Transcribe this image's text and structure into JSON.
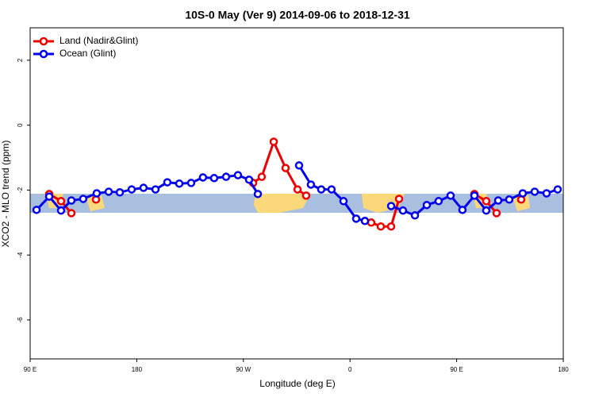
{
  "chart_data": {
    "type": "line",
    "title": "10S-0 May (Ver 9)   2014-09-06 to 2018-12-31",
    "xlabel": "Longitude (deg E)",
    "ylabel": "XCO2 - MLO trend (ppm)",
    "xlim": [
      90,
      540
    ],
    "xticks": [
      {
        "value": 90,
        "label": "90 E"
      },
      {
        "value": 180,
        "label": "180"
      },
      {
        "value": 270,
        "label": "90 W"
      },
      {
        "value": 360,
        "label": "0"
      },
      {
        "value": 450,
        "label": "90 E"
      },
      {
        "value": 540,
        "label": "180"
      }
    ],
    "ylim": [
      -7.2,
      3.0
    ],
    "yticks": [
      -6,
      -4,
      -2,
      0,
      2
    ],
    "legend": "top-left",
    "series": [
      {
        "name": "Land (Nadir&Glint)",
        "color": "#ee0000",
        "x": [
          106.1,
          116.1,
          124.8,
          null,
          145.6,
          null,
          278.2,
          285.5,
          295.6,
          305.6,
          315.7,
          323.0,
          null,
          377.9,
          386.0,
          394.7,
          401.4,
          null,
          465.0,
          475.0,
          483.7,
          null,
          504.5
        ],
        "values": [
          -2.12,
          -2.34,
          -2.71,
          null,
          -2.29,
          null,
          -1.78,
          -1.59,
          -0.51,
          -1.32,
          -1.98,
          -2.17,
          null,
          -3.0,
          -3.12,
          -3.12,
          -2.27,
          null,
          -2.12,
          -2.34,
          -2.71,
          null,
          -2.29
        ]
      },
      {
        "name": "Ocean (Glint)",
        "color": "#0000ee",
        "x": [
          95.4,
          106.1,
          116.1,
          124.8,
          134.8,
          146.2,
          156.3,
          165.7,
          175.7,
          185.7,
          195.8,
          205.8,
          215.9,
          225.9,
          235.9,
          245.3,
          255.4,
          265.4,
          274.8,
          282.2,
          null,
          317.0,
          327.0,
          335.7,
          344.4,
          354.5,
          365.2,
          372.6,
          null,
          394.7,
          404.7,
          414.8,
          424.8,
          434.8,
          444.9,
          454.9,
          465.0,
          475.0,
          485.1,
          494.4,
          505.8,
          515.9,
          525.9,
          535.3
        ],
        "values": [
          -2.61,
          -2.2,
          -2.63,
          -2.32,
          -2.27,
          -2.1,
          -2.05,
          -2.07,
          -1.98,
          -1.93,
          -1.98,
          -1.76,
          -1.8,
          -1.78,
          -1.61,
          -1.63,
          -1.59,
          -1.54,
          -1.68,
          -2.12,
          null,
          -1.24,
          -1.83,
          -1.98,
          -1.98,
          -2.34,
          -2.88,
          -2.95,
          null,
          -2.49,
          -2.63,
          -2.78,
          -2.46,
          -2.34,
          -2.17,
          -2.61,
          -2.17,
          -2.63,
          -2.32,
          -2.29,
          -2.1,
          -2.05,
          -2.1,
          -1.98
        ]
      }
    ]
  }
}
